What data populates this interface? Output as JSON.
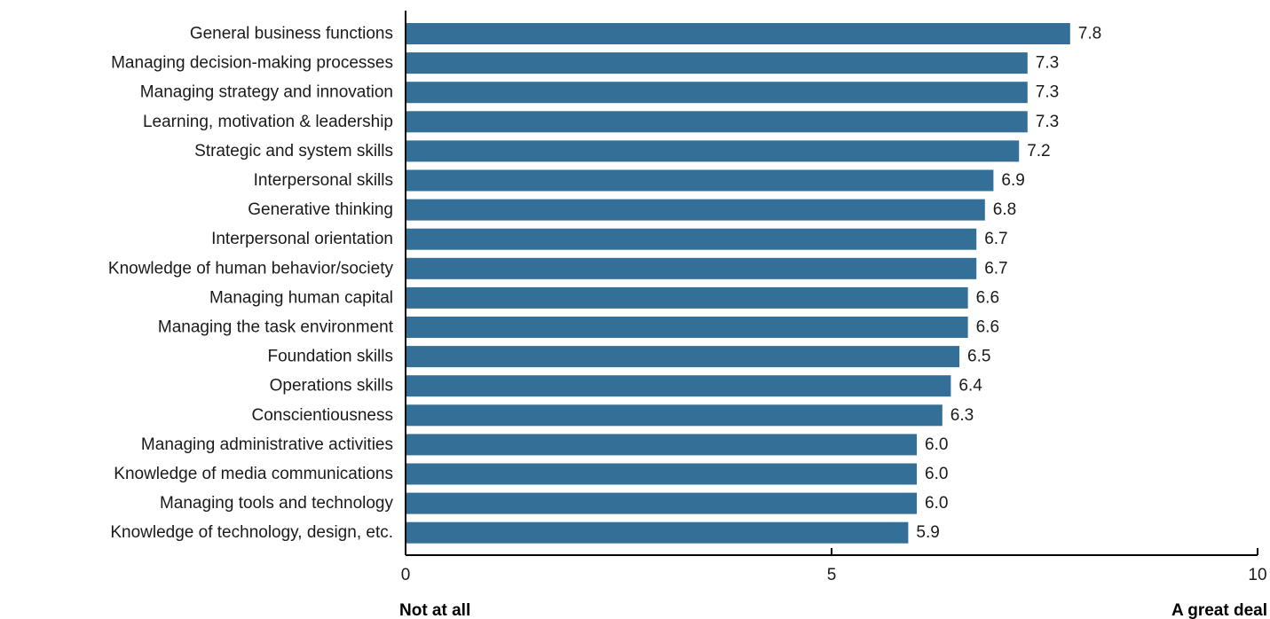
{
  "chart_data": {
    "type": "bar",
    "orientation": "horizontal",
    "categories": [
      "General business functions",
      "Managing decision-making processes",
      "Managing strategy and innovation",
      "Learning, motivation & leadership",
      "Strategic and system skills",
      "Interpersonal skills",
      "Generative thinking",
      "Interpersonal orientation",
      "Knowledge of human behavior/society",
      "Managing human capital",
      "Managing the task environment",
      "Foundation skills",
      "Operations skills",
      "Conscientiousness",
      "Managing administrative activities",
      "Knowledge of media communications",
      "Managing tools and technology",
      "Knowledge of technology, design, etc."
    ],
    "values": [
      7.8,
      7.3,
      7.3,
      7.3,
      7.2,
      6.9,
      6.8,
      6.7,
      6.7,
      6.6,
      6.6,
      6.5,
      6.4,
      6.3,
      6.0,
      6.0,
      6.0,
      5.9
    ],
    "value_labels": [
      "7.8",
      "7.3",
      "7.3",
      "7.3",
      "7.2",
      "6.9",
      "6.8",
      "6.7",
      "6.7",
      "6.6",
      "6.6",
      "6.5",
      "6.4",
      "6.3",
      "6.0",
      "6.0",
      "6.0",
      "5.9"
    ],
    "xlim": [
      0,
      10
    ],
    "xticks": [
      0,
      5,
      10
    ],
    "xtick_labels": [
      "0",
      "5",
      "10"
    ],
    "x_min_label": "Not at all",
    "x_max_label": "A great deal",
    "bar_color": "#336f96",
    "grid": false,
    "legend": "none"
  }
}
